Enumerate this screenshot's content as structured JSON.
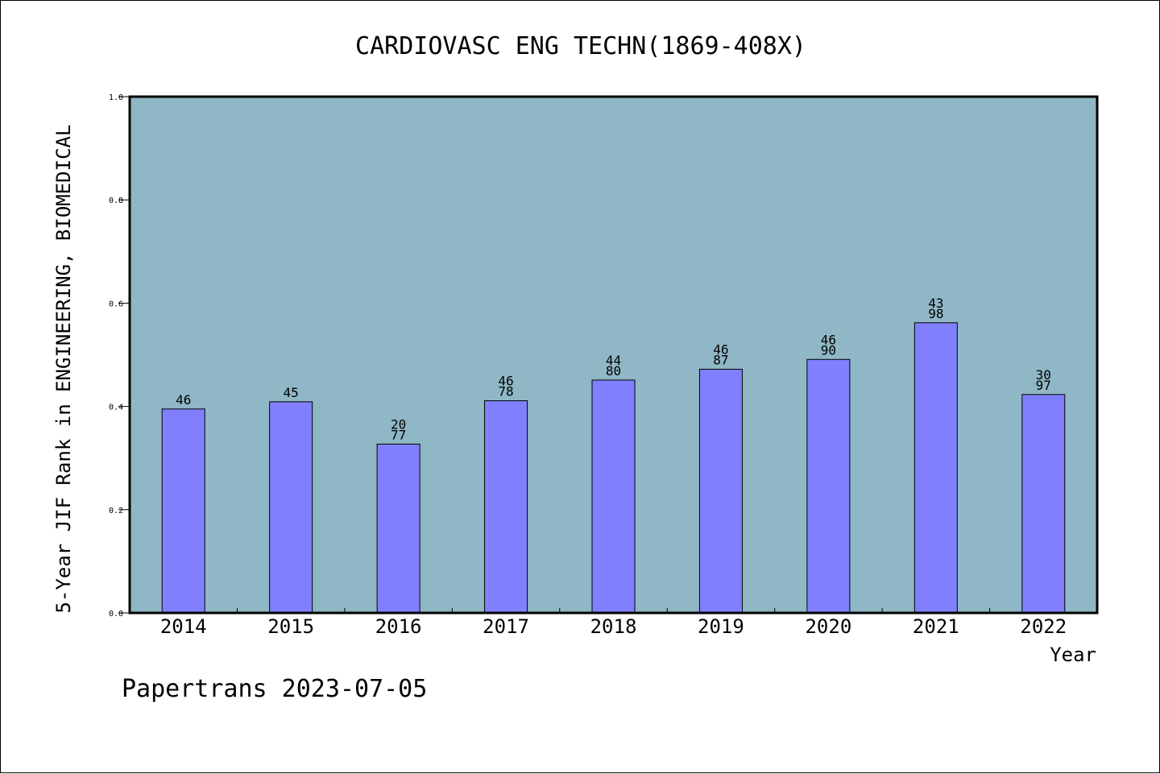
{
  "chart_data": {
    "type": "bar",
    "title": "CARDIOVASC ENG TECHN(1869-408X)",
    "xlabel": "Year",
    "ylabel": "5-Year JIF Rank in ENGINEERING, BIOMEDICAL",
    "ylim": [
      0,
      1.0
    ],
    "yticks": [
      "0.0",
      "0.2",
      "0.4",
      "0.6",
      "0.8",
      "1.0"
    ],
    "categories": [
      "2014",
      "2015",
      "2016",
      "2017",
      "2018",
      "2019",
      "2020",
      "2021",
      "2022"
    ],
    "values": [
      0.395,
      0.409,
      0.327,
      0.411,
      0.451,
      0.472,
      0.491,
      0.562,
      0.423
    ],
    "bar_labels": [
      [
        "46"
      ],
      [
        "45"
      ],
      [
        "20",
        "77"
      ],
      [
        "46",
        "78"
      ],
      [
        "44",
        "80"
      ],
      [
        "46",
        "87"
      ],
      [
        "46",
        "90"
      ],
      [
        "43",
        "98"
      ],
      [
        "30",
        "97"
      ]
    ],
    "grid": false,
    "colors": {
      "plot_background": "#8fb7c5",
      "bar_fill": "#8080ff",
      "bar_edge": "#000000"
    }
  },
  "footer": {
    "text": "Papertrans 2023-07-05"
  }
}
